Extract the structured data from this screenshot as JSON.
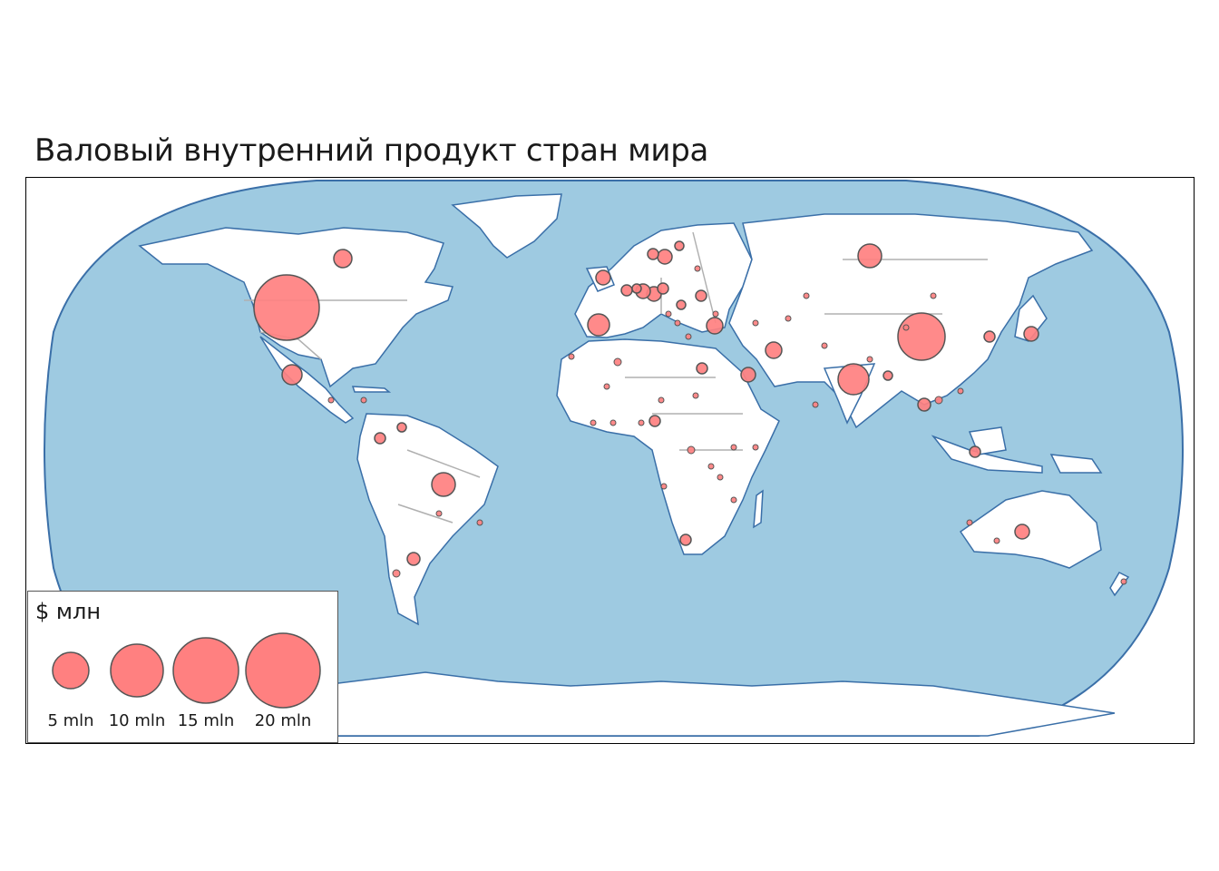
{
  "title": "Валовый внутренний продукт стран мира",
  "legend": {
    "title": "$ млн",
    "items": [
      {
        "label": "5 mln",
        "value": 5
      },
      {
        "label": "10 mln",
        "value": 10
      },
      {
        "label": "15 mln",
        "value": 15
      },
      {
        "label": "20 mln",
        "value": 20
      }
    ]
  },
  "colors": {
    "ocean": "#9ecae1",
    "land": "#ffffff",
    "coast": "#3a6fa8",
    "border": "#b0b0b0",
    "bubble": "#ff8080",
    "bubble_stroke": "#555555"
  }
}
